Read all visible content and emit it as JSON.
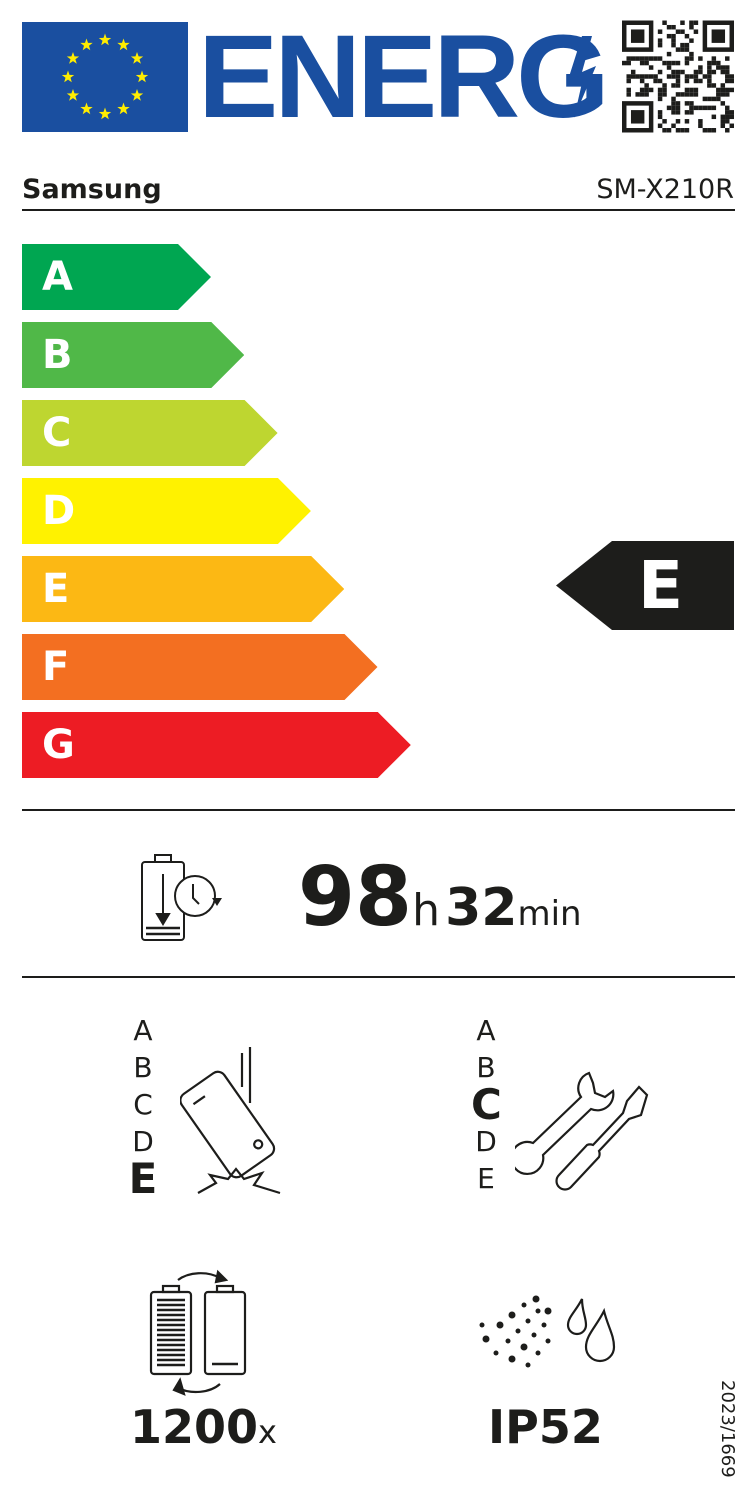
{
  "header": {
    "logo_text": "ENERG",
    "brand": "Samsung",
    "model": "SM-X210R"
  },
  "energy_scale": {
    "classes": [
      {
        "label": "A",
        "color": "#00a651"
      },
      {
        "label": "B",
        "color": "#50b848"
      },
      {
        "label": "C",
        "color": "#bed630"
      },
      {
        "label": "D",
        "color": "#fff200"
      },
      {
        "label": "E",
        "color": "#fcb814"
      },
      {
        "label": "F",
        "color": "#f36f21"
      },
      {
        "label": "G",
        "color": "#ed1c24"
      }
    ],
    "rating": "E"
  },
  "battery_endurance": {
    "hours": "98",
    "hours_unit": "h",
    "minutes": "32",
    "minutes_unit": "min"
  },
  "drop_resistance": {
    "classes": [
      "A",
      "B",
      "C",
      "D",
      "E"
    ],
    "selected": "E"
  },
  "repairability": {
    "classes": [
      "A",
      "B",
      "C",
      "D",
      "E"
    ],
    "selected": "C"
  },
  "battery_cycles": {
    "value": "1200",
    "unit": "x"
  },
  "ingress_protection": {
    "value": "IP52"
  },
  "regulation": "2023/1669"
}
